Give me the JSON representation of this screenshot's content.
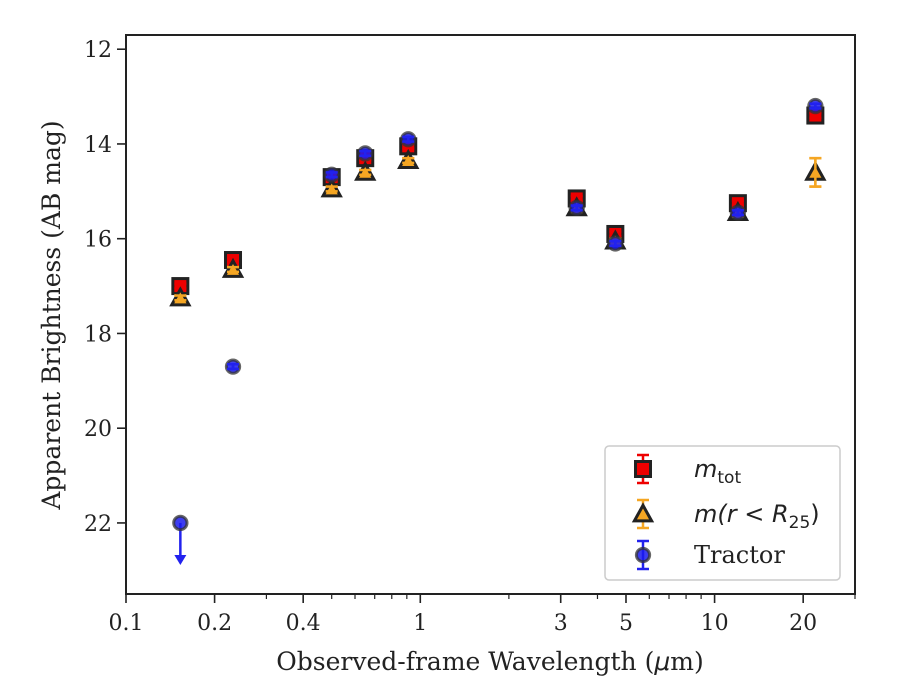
{
  "chart_data": {
    "type": "scatter",
    "xlabel_parts": [
      "Observed-frame Wavelength (",
      "μ",
      "m)"
    ],
    "ylabel": "Apparent Brightness (AB mag)",
    "x_scale": "log",
    "y_inverted": true,
    "xlim": [
      0.1,
      30
    ],
    "ylim": [
      23.5,
      11.7
    ],
    "x_ticks": [
      0.1,
      0.2,
      0.4,
      1,
      3,
      5,
      10,
      20
    ],
    "x_tick_labels": [
      "0.1",
      "0.2",
      "0.4",
      "1",
      "3",
      "5",
      "10",
      "20"
    ],
    "y_ticks": [
      12,
      14,
      16,
      18,
      20,
      22
    ],
    "y_tick_labels": [
      "12",
      "14",
      "16",
      "18",
      "20",
      "22"
    ],
    "grid": false,
    "legend_position": "bottom-right",
    "series": [
      {
        "name": "m_tot",
        "legend_label": {
          "base": "m",
          "sub": "tot"
        },
        "marker": "square",
        "color": "#ee0000",
        "edge_color": "#222222",
        "error_color": "#ee0000",
        "points": [
          {
            "x": 0.153,
            "y": 17.0,
            "err": 0.05
          },
          {
            "x": 0.231,
            "y": 16.45,
            "err": 0.05
          },
          {
            "x": 0.5,
            "y": 14.7,
            "err": 0.05
          },
          {
            "x": 0.65,
            "y": 14.3,
            "err": 0.05
          },
          {
            "x": 0.91,
            "y": 14.05,
            "err": 0.05
          },
          {
            "x": 3.4,
            "y": 15.15,
            "err": 0.05
          },
          {
            "x": 4.6,
            "y": 15.9,
            "err": 0.05
          },
          {
            "x": 12.0,
            "y": 15.25,
            "err": 0.05
          },
          {
            "x": 22.0,
            "y": 13.4,
            "err": 0.05
          }
        ]
      },
      {
        "name": "m(r < R25)",
        "legend_label": {
          "text": "m(r < R",
          "sub": "25",
          "close": ")"
        },
        "marker": "triangle",
        "color": "#f5a623",
        "edge_color": "#222222",
        "error_color": "#f5a623",
        "points": [
          {
            "x": 0.153,
            "y": 17.25,
            "err": 0.05
          },
          {
            "x": 0.231,
            "y": 16.65,
            "err": 0.05
          },
          {
            "x": 0.5,
            "y": 14.95,
            "err": 0.05
          },
          {
            "x": 0.65,
            "y": 14.6,
            "err": 0.05
          },
          {
            "x": 0.91,
            "y": 14.35,
            "err": 0.05
          },
          {
            "x": 3.4,
            "y": 15.35,
            "err": 0.05
          },
          {
            "x": 4.6,
            "y": 16.05,
            "err": 0.05
          },
          {
            "x": 12.0,
            "y": 15.45,
            "err": 0.05
          },
          {
            "x": 22.0,
            "y": 14.6,
            "err": 0.3
          }
        ]
      },
      {
        "name": "Tractor",
        "legend_label": {
          "text": "Tractor"
        },
        "marker": "circle",
        "color": "#1a1aee",
        "edge_color": "#333333",
        "error_color": "#2222ee",
        "points": [
          {
            "x": 0.153,
            "y": 22.0,
            "err": 0,
            "upper_limit": true
          },
          {
            "x": 0.231,
            "y": 18.7,
            "err": 0.05
          },
          {
            "x": 0.5,
            "y": 14.65,
            "err": 0.05
          },
          {
            "x": 0.65,
            "y": 14.2,
            "err": 0.05
          },
          {
            "x": 0.91,
            "y": 13.9,
            "err": 0.05
          },
          {
            "x": 3.4,
            "y": 15.35,
            "err": 0.05
          },
          {
            "x": 4.6,
            "y": 16.1,
            "err": 0.05
          },
          {
            "x": 12.0,
            "y": 15.45,
            "err": 0.05
          },
          {
            "x": 22.0,
            "y": 13.2,
            "err": 0.05
          }
        ]
      }
    ]
  }
}
